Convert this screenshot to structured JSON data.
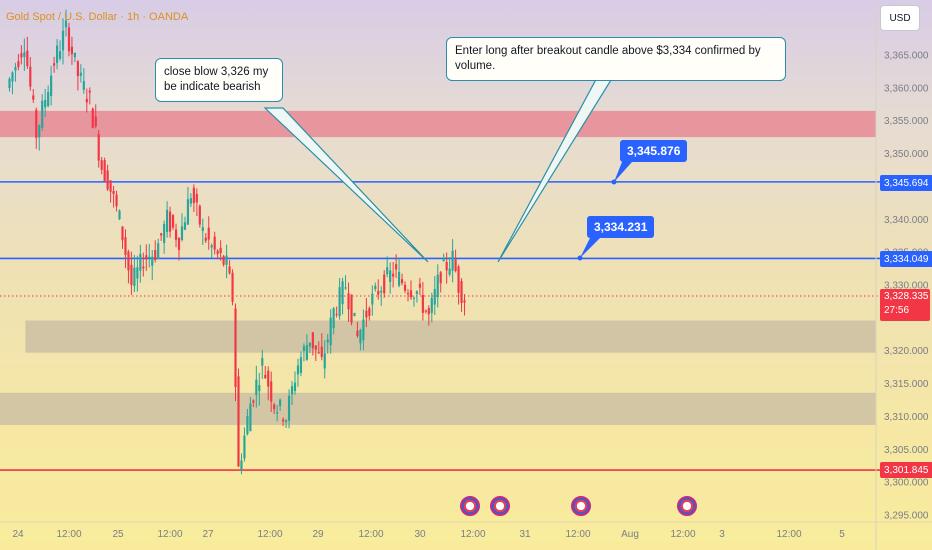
{
  "title": "Gold Spot / U.S. Dollar · 1h · OANDA",
  "currency_button": "USD",
  "colors": {
    "blue_line": "#2962ff",
    "red_line": "#f23645",
    "bull": "#26a69a",
    "bear": "#f23645"
  },
  "price_axis": {
    "labels": [
      "3,365.000",
      "3,360.000",
      "3,355.000",
      "3,350.000",
      "3,340.000",
      "3,335.000",
      "3,330.000",
      "3,320.000",
      "3,315.000",
      "3,310.000",
      "3,305.000",
      "3,300.000",
      "3,295.000"
    ],
    "values": [
      3365,
      3360,
      3355,
      3350,
      3340,
      3335,
      3330,
      3320,
      3315,
      3310,
      3305,
      3300,
      3295
    ]
  },
  "time_axis": [
    "24",
    "12:00",
    "25",
    "12:00",
    "27",
    "12:00",
    "29",
    "12:00",
    "30",
    "12:00",
    "31",
    "12:00",
    "Aug",
    "12:00",
    "3",
    "12:00",
    "5"
  ],
  "price_tags": {
    "tag_3345": "3,345.694",
    "tag_3334": "3,334.049",
    "tag_3301": "3,301.845"
  },
  "current_price": {
    "price": "3,328.335",
    "countdown": "27:56"
  },
  "callouts": {
    "bearish": "close blow 3,326 my be indicate bearish",
    "long": "Enter long after breakout candle above $3,334 confirmed by volume."
  },
  "level_labels": {
    "upper": "3,345.876",
    "lower": "3,334.231"
  },
  "chart_data": {
    "type": "candlestick",
    "title": "Gold Spot / U.S. Dollar · 1h · OANDA",
    "xlabel": "",
    "ylabel": "",
    "ylim": [
      3293,
      3370
    ],
    "horizontal_lines": [
      {
        "price": 3345.694,
        "color": "#2962ff"
      },
      {
        "price": 3334.049,
        "color": "#2962ff"
      },
      {
        "price": 3301.845,
        "color": "#f23645"
      }
    ],
    "zones": [
      {
        "from": 3352.5,
        "to": 3356.5,
        "color": "#e88a94",
        "x_start": 0,
        "x_end": 1
      },
      {
        "from": 3319.7,
        "to": 3324.6,
        "color": "#cbbfa4",
        "x_start": 0.029,
        "x_end": 1
      },
      {
        "from": 3308.7,
        "to": 3313.6,
        "color": "#cbbfa4",
        "x_start": 0,
        "x_end": 1
      }
    ],
    "current_price": 3328.335,
    "series_hint": "candles: open high low close (approximate path from 24 Jul to 30 Jul)",
    "candles_anchor_path": [
      [
        0,
        3360
      ],
      [
        6,
        3367
      ],
      [
        10,
        3353
      ],
      [
        16,
        3364
      ],
      [
        20,
        3369
      ],
      [
        24,
        3362
      ],
      [
        28,
        3358
      ],
      [
        32,
        3348
      ],
      [
        34,
        3346
      ],
      [
        38,
        3340
      ],
      [
        42,
        3330
      ],
      [
        46,
        3334
      ],
      [
        50,
        3335
      ],
      [
        54,
        3340
      ],
      [
        58,
        3337
      ],
      [
        62,
        3344
      ],
      [
        66,
        3338
      ],
      [
        70,
        3335
      ],
      [
        74,
        3333
      ],
      [
        76,
        3328
      ],
      [
        78,
        3302
      ],
      [
        82,
        3312
      ],
      [
        86,
        3318
      ],
      [
        90,
        3312
      ],
      [
        94,
        3310
      ],
      [
        98,
        3318
      ],
      [
        102,
        3322
      ],
      [
        106,
        3318
      ],
      [
        110,
        3326
      ],
      [
        114,
        3330
      ],
      [
        118,
        3322
      ],
      [
        122,
        3327
      ],
      [
        126,
        3330
      ],
      [
        130,
        3332
      ],
      [
        134,
        3330
      ],
      [
        138,
        3329
      ],
      [
        142,
        3325
      ],
      [
        146,
        3332
      ],
      [
        150,
        3334
      ],
      [
        152,
        3330
      ],
      [
        154,
        3328
      ]
    ],
    "event_markers": [
      "us-flag",
      "us-flag",
      "us-flag",
      "us-flag"
    ]
  }
}
